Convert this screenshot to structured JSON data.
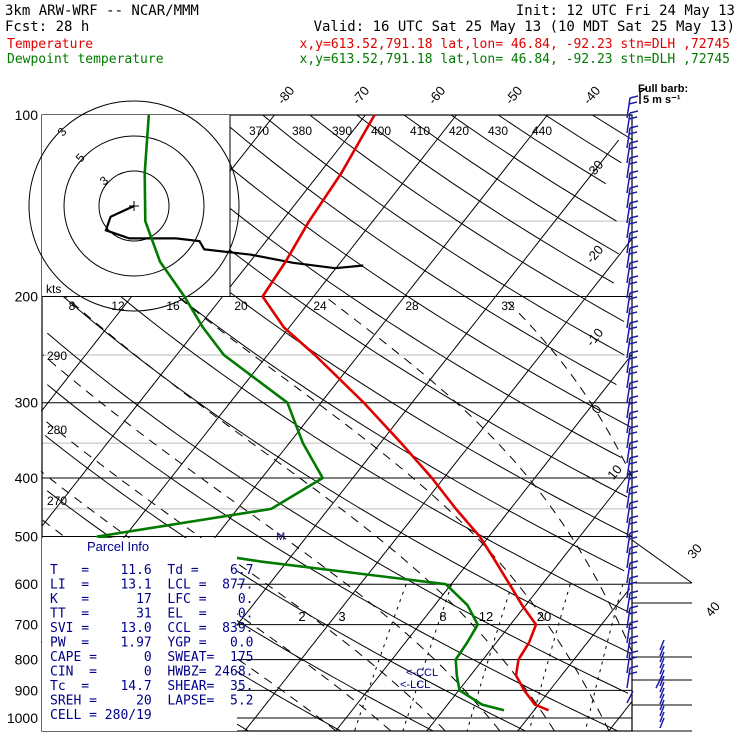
{
  "header": {
    "line1_left": "3km ARW-WRF -- NCAR/MMM",
    "line1_right": "Init: 12 UTC Fri 24 May 13",
    "line2_left": "Fcst:    28 h",
    "line2_right": "Valid: 16 UTC Sat 25 May 13 (10 MDT Sat 25 May 13)",
    "temp_label": "Temperature",
    "dew_label": "Dewpoint temperature",
    "temp_info": "x,y=613.52,791.18   lat,lon= 46.84, -92.23   stn=DLH ,72745",
    "dew_info": "x,y=613.52,791.18   lat,lon= 46.84, -92.23   stn=DLH ,72745",
    "full_barb_label": "Full barb:",
    "full_barb_value": "5 m s⁻¹"
  },
  "colors": {
    "temperature": "#e00000",
    "dewpoint": "#007a00",
    "parcel_text": "#00008b",
    "barbs": "#1a1aa8"
  },
  "pressure_labels": [
    "100",
    "200",
    "300",
    "400",
    "500",
    "600",
    "700",
    "800",
    "900",
    "1000"
  ],
  "isotherm_labels_top": [
    "-80",
    "-70",
    "-60",
    "-50",
    "-40"
  ],
  "isotherm_labels_right": [
    "-30",
    "-20",
    "-10",
    "0",
    "10",
    "30",
    "40"
  ],
  "theta_labels": [
    "370",
    "380",
    "390",
    "400",
    "410",
    "420",
    "430",
    "440"
  ],
  "theta_labels_left": [
    "290",
    "280",
    "270"
  ],
  "mixing_ratio_labels": [
    "2",
    "3",
    "8",
    "12",
    "20"
  ],
  "hodograph": {
    "kts_label": "kts",
    "speed_labels": [
      "8",
      "12",
      "16",
      "20",
      "24",
      "28",
      "32"
    ],
    "ring_labels": [
      "3",
      "5",
      "3"
    ]
  },
  "lcl_labels": [
    "<-CCL",
    "<-LCL"
  ],
  "parcel_info": {
    "title": "Parcel Info",
    "rows": [
      "T   =    11.6  Td =    6.7",
      "LI  =    13.1  LCL =  877.",
      "K   =      17  LFC =    0.",
      "TT  =      31  EL  =    0.",
      "SVI =    13.0  CCL =  839.",
      "PW  =    1.97  YGP =   0.0",
      "CAPE =      0  SWEAT=  175",
      "CIN  =      0  HWBZ= 2468.",
      "Tc  =    14.7  SHEAR=  35.",
      "SREH =     20  LAPSE=  5.2",
      "CELL = 280/19"
    ]
  },
  "chart_data": {
    "type": "line",
    "chart_kind": "skew-T log-P sounding",
    "y_axis": {
      "label": "",
      "unit": "hPa",
      "ticks": [
        100,
        200,
        300,
        400,
        500,
        600,
        700,
        800,
        900,
        1000
      ],
      "scale": "log"
    },
    "x_axis": {
      "label": "",
      "unit": "degC",
      "ticks": [
        -80,
        -70,
        -60,
        -50,
        -40,
        -30,
        -20,
        -10,
        0,
        10,
        20,
        30,
        40
      ]
    },
    "series": [
      {
        "name": "Temperature",
        "points": [
          [
            971,
            11.6
          ],
          [
            950,
            9.6
          ],
          [
            900,
            7.2
          ],
          [
            850,
            5.0
          ],
          [
            800,
            3.9
          ],
          [
            750,
            3.6
          ],
          [
            700,
            2.8
          ],
          [
            650,
            -0.4
          ],
          [
            600,
            -3.6
          ],
          [
            550,
            -7.1
          ],
          [
            500,
            -11.0
          ],
          [
            450,
            -16.0
          ],
          [
            400,
            -21.3
          ],
          [
            350,
            -27.7
          ],
          [
            300,
            -35.3
          ],
          [
            250,
            -44.8
          ],
          [
            225,
            -50.6
          ],
          [
            200,
            -55.6
          ],
          [
            175,
            -56.1
          ],
          [
            150,
            -57.0
          ],
          [
            125,
            -57.6
          ],
          [
            100,
            -59.0
          ]
        ]
      },
      {
        "name": "Dewpoint temperature",
        "points": [
          [
            971,
            6.7
          ],
          [
            950,
            3.8
          ],
          [
            900,
            0.1
          ],
          [
            850,
            -1.5
          ],
          [
            800,
            -3.0
          ],
          [
            750,
            -3.2
          ],
          [
            700,
            -3.6
          ],
          [
            650,
            -6.4
          ],
          [
            600,
            -10.6
          ],
          [
            550,
            -33.0
          ],
          [
            500,
            -53.0
          ],
          [
            450,
            -36.3
          ],
          [
            400,
            -33.3
          ],
          [
            350,
            -38.5
          ],
          [
            300,
            -43.7
          ],
          [
            250,
            -54.8
          ],
          [
            225,
            -59.5
          ],
          [
            200,
            -64.2
          ],
          [
            175,
            -69.9
          ],
          [
            150,
            -75.0
          ],
          [
            125,
            -79.2
          ],
          [
            100,
            -83.8
          ]
        ]
      }
    ],
    "wind_barbs": {
      "description": "Wind barbs (m s-1) at right edge, one per model level from surface to 100 hPa",
      "full_barb_ms": 5
    },
    "hodograph": {
      "speed_unit": "kts",
      "trace": [
        [
          0,
          0
        ],
        [
          -5,
          -4
        ],
        [
          -6,
          -9
        ],
        [
          -1,
          -12
        ],
        [
          3,
          -12
        ],
        [
          9,
          -12
        ],
        [
          14,
          -13
        ],
        [
          15,
          -16
        ],
        [
          25,
          -18
        ],
        [
          34,
          -21
        ],
        [
          43,
          -23
        ],
        [
          49,
          -22
        ]
      ]
    }
  }
}
